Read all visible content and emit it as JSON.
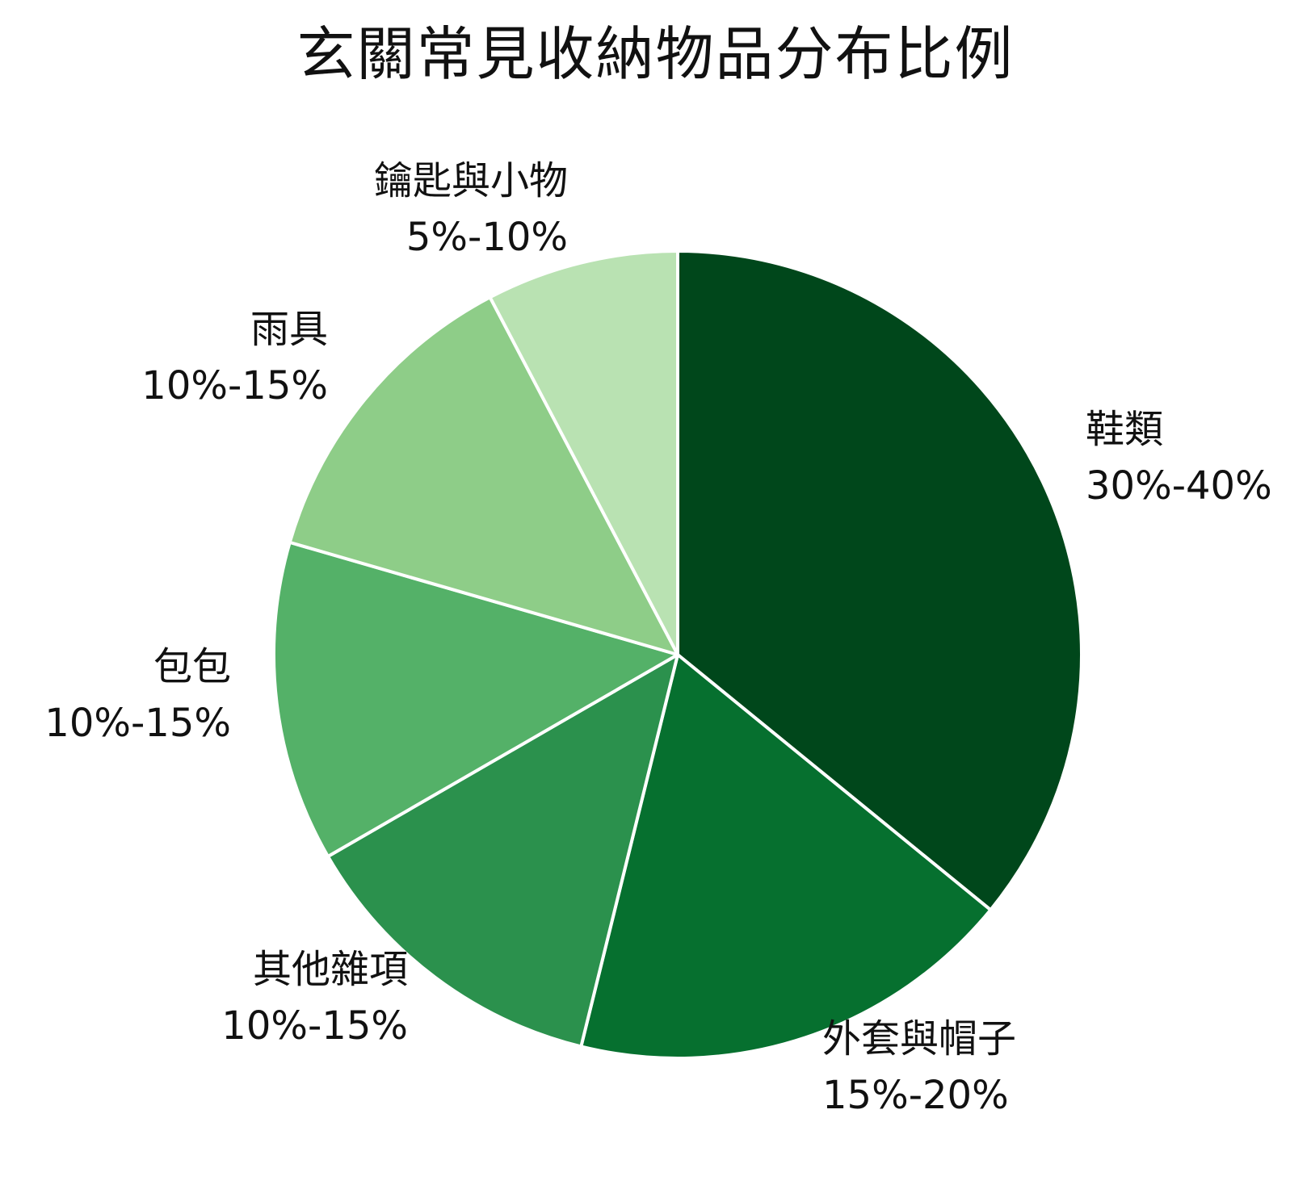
{
  "chart_data": {
    "type": "pie",
    "title": "玄關常見收納物品分布比例",
    "start_angle_deg": 0,
    "direction": "clockwise",
    "slices": [
      {
        "label": "鞋類",
        "range": "30%-40%",
        "value": 35,
        "color": "#00471b"
      },
      {
        "label": "外套與帽子",
        "range": "15%-20%",
        "value": 17.5,
        "color": "#06702f"
      },
      {
        "label": "其他雜項",
        "range": "10%-15%",
        "value": 12.5,
        "color": "#2b914d"
      },
      {
        "label": "包包",
        "range": "10%-15%",
        "value": 12.5,
        "color": "#54b168"
      },
      {
        "label": "雨具",
        "range": "10%-15%",
        "value": 12.5,
        "color": "#8ecd88"
      },
      {
        "label": "鑰匙與小物",
        "range": "5%-10%",
        "value": 7.5,
        "color": "#b9e2b2"
      }
    ],
    "slice_border_color": "#ffffff",
    "legend": "none"
  }
}
